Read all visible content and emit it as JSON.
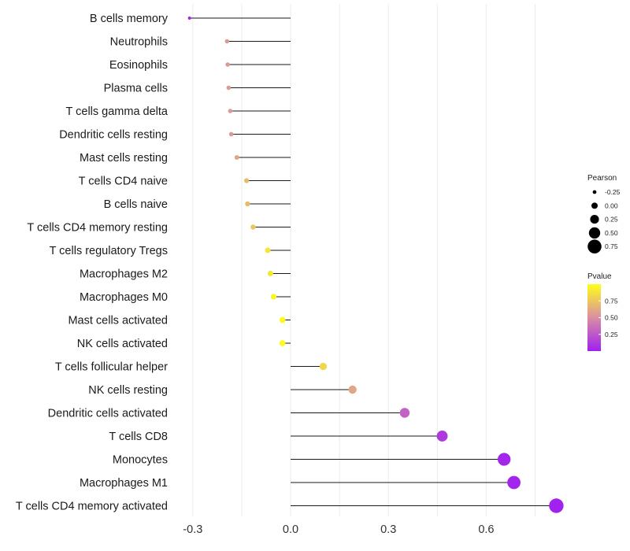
{
  "chart_data": {
    "type": "lollipop",
    "title": "",
    "xlabel": "",
    "ylabel": "",
    "xlim": [
      -0.34,
      0.84
    ],
    "xticks": [
      -0.3,
      0.0,
      0.3,
      0.6
    ],
    "xtick_labels": [
      "-0.3",
      "0.0",
      "0.3",
      "0.6"
    ],
    "grid": true,
    "categories": [
      "B cells memory",
      "Neutrophils",
      "Eosinophils",
      "Plasma cells",
      "T cells gamma delta",
      "Dendritic cells resting",
      "Mast cells resting",
      "T cells CD4 naive",
      "B cells naive",
      "T cells CD4 memory resting",
      "T cells regulatory  Tregs ",
      "Macrophages M2",
      "Macrophages M0",
      "Mast cells activated",
      "NK cells activated",
      "T cells follicular helper",
      "NK cells resting",
      "Dendritic cells activated",
      "T cells CD8",
      "Monocytes",
      "Macrophages M1",
      "T cells CD4 memory activated"
    ],
    "pearson": [
      -0.31,
      -0.195,
      -0.193,
      -0.19,
      -0.185,
      -0.182,
      -0.165,
      -0.135,
      -0.132,
      -0.115,
      -0.07,
      -0.062,
      -0.052,
      -0.025,
      -0.025,
      0.1,
      0.19,
      0.35,
      0.465,
      0.655,
      0.685,
      0.815
    ],
    "pvalue": [
      0.02,
      0.55,
      0.55,
      0.55,
      0.55,
      0.55,
      0.6,
      0.7,
      0.7,
      0.75,
      0.88,
      0.9,
      0.95,
      0.98,
      0.98,
      0.82,
      0.6,
      0.3,
      0.12,
      0.03,
      0.02,
      0.01
    ],
    "size_legend": {
      "title": "Pearson",
      "values": [
        -0.25,
        0.0,
        0.25,
        0.5,
        0.75
      ],
      "labels": [
        "-0.25",
        "0.00",
        "0.25",
        "0.50",
        "0.75"
      ]
    },
    "color_legend": {
      "title": "Pvalue",
      "labels": [
        "0.75",
        "0.50",
        "0.25"
      ],
      "values": [
        0.75,
        0.5,
        0.25
      ],
      "range": [
        0.0,
        1.0
      ],
      "colors": {
        "low": "#a020f0",
        "mid": "#d98ea3",
        "high": "#ffff1a"
      }
    }
  }
}
